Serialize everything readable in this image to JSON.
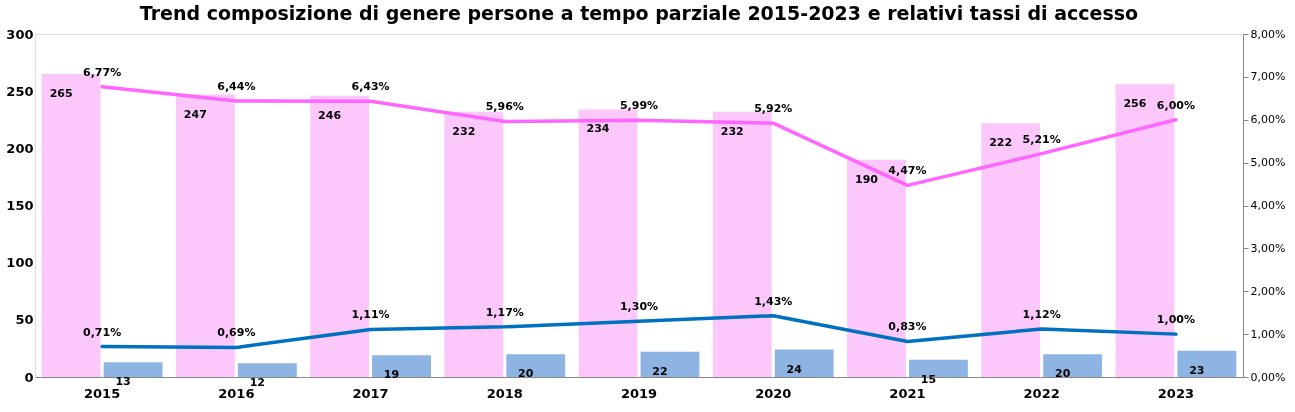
{
  "chart_data": {
    "type": "bar",
    "title": "Trend composizione di genere persone a tempo parziale 2015-2023 e relativi tassi di accesso",
    "categories": [
      "2015",
      "2016",
      "2017",
      "2018",
      "2019",
      "2020",
      "2021",
      "2022",
      "2023"
    ],
    "series": [
      {
        "color": "#fcc8fc",
        "values": [
          265,
          247,
          246,
          232,
          234,
          232,
          190,
          222,
          256
        ],
        "value_labels": [
          "265",
          "247",
          "246",
          "232",
          "234",
          "232",
          "190",
          "222",
          "256"
        ]
      },
      {
        "color": "#8db4e2",
        "values": [
          13,
          12,
          19,
          20,
          22,
          24,
          15,
          20,
          23
        ],
        "value_labels": [
          "13",
          "12",
          "19",
          "20",
          "22",
          "24",
          "15",
          "20",
          "23"
        ]
      },
      {
        "type": "line",
        "axis": "y2",
        "color": "#ff66ff",
        "values": [
          6.77,
          6.44,
          6.43,
          5.96,
          5.99,
          5.92,
          4.47,
          5.21,
          6.0
        ],
        "value_labels": [
          "6,77%",
          "6,44%",
          "6,43%",
          "5,96%",
          "5,99%",
          "5,92%",
          "4,47%",
          "5,21%",
          "6,00%"
        ]
      },
      {
        "type": "line",
        "axis": "y2",
        "color": "#0070c0",
        "values": [
          0.71,
          0.69,
          1.11,
          1.17,
          1.3,
          1.43,
          0.83,
          1.12,
          1.0
        ],
        "value_labels": [
          "0,71%",
          "0,69%",
          "1,11%",
          "1,17%",
          "1,30%",
          "1,43%",
          "0,83%",
          "1,12%",
          "1,00%"
        ]
      }
    ],
    "ylim": [
      0,
      300
    ],
    "yticks": [
      0,
      50,
      100,
      150,
      200,
      250,
      300
    ],
    "y2lim": [
      0,
      8
    ],
    "y2ticks": [
      {
        "value": 0,
        "label": "0,00%"
      },
      {
        "value": 1,
        "label": "1,00%"
      },
      {
        "value": 2,
        "label": "2,00%"
      },
      {
        "value": 3,
        "label": "3,00%"
      },
      {
        "value": 4,
        "label": "4,00%"
      },
      {
        "value": 5,
        "label": "5,00%"
      },
      {
        "value": 6,
        "label": "6,00%"
      },
      {
        "value": 7,
        "label": "7,00%"
      },
      {
        "value": 8,
        "label": "8,00%"
      }
    ],
    "grid": false
  }
}
